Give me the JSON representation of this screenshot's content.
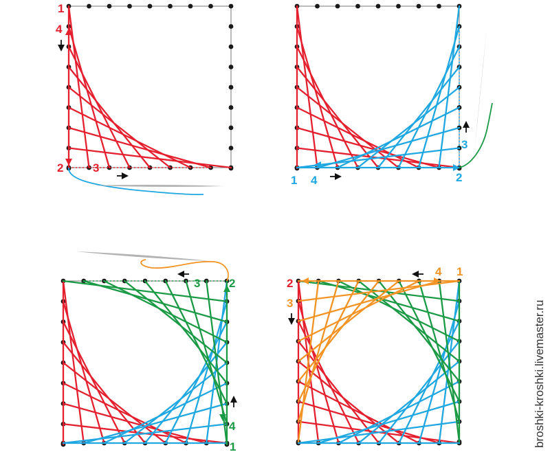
{
  "colors": {
    "red": "#e5202e",
    "blue": "#1fa7e1",
    "green": "#1b9a45",
    "orange": "#f39324",
    "dot": "#1a1a1a",
    "frame": "#777777",
    "needle": "#b3b3b3",
    "arrow": "#111111"
  },
  "credit": "broshki-kroshki.livemaster.ru",
  "panels": [
    {
      "name": "step-1",
      "labels": [
        {
          "id": "p1-label-1",
          "text": "1",
          "color": "red"
        },
        {
          "id": "p1-label-4",
          "text": "4",
          "color": "red"
        },
        {
          "id": "p1-label-2",
          "text": "2",
          "color": "red"
        },
        {
          "id": "p1-label-3",
          "text": "3",
          "color": "red"
        }
      ]
    },
    {
      "name": "step-2",
      "labels": [
        {
          "id": "p2-label-1",
          "text": "1",
          "color": "blue"
        },
        {
          "id": "p2-label-4",
          "text": "4",
          "color": "blue"
        },
        {
          "id": "p2-label-2",
          "text": "2",
          "color": "blue"
        },
        {
          "id": "p2-label-3",
          "text": "3",
          "color": "blue"
        }
      ]
    },
    {
      "name": "step-3",
      "labels": [
        {
          "id": "p3-label-3",
          "text": "3",
          "color": "green"
        },
        {
          "id": "p3-label-2",
          "text": "2",
          "color": "green"
        },
        {
          "id": "p3-label-4",
          "text": "4",
          "color": "green"
        },
        {
          "id": "p3-label-1",
          "text": "1",
          "color": "green"
        }
      ]
    },
    {
      "name": "step-4",
      "labels": [
        {
          "id": "p4-label-2",
          "text": "2",
          "color": "red"
        },
        {
          "id": "p4-label-3",
          "text": "3",
          "color": "orange"
        },
        {
          "id": "p4-label-4",
          "text": "4",
          "color": "orange"
        },
        {
          "id": "p4-label-1",
          "text": "1",
          "color": "orange"
        }
      ]
    }
  ]
}
